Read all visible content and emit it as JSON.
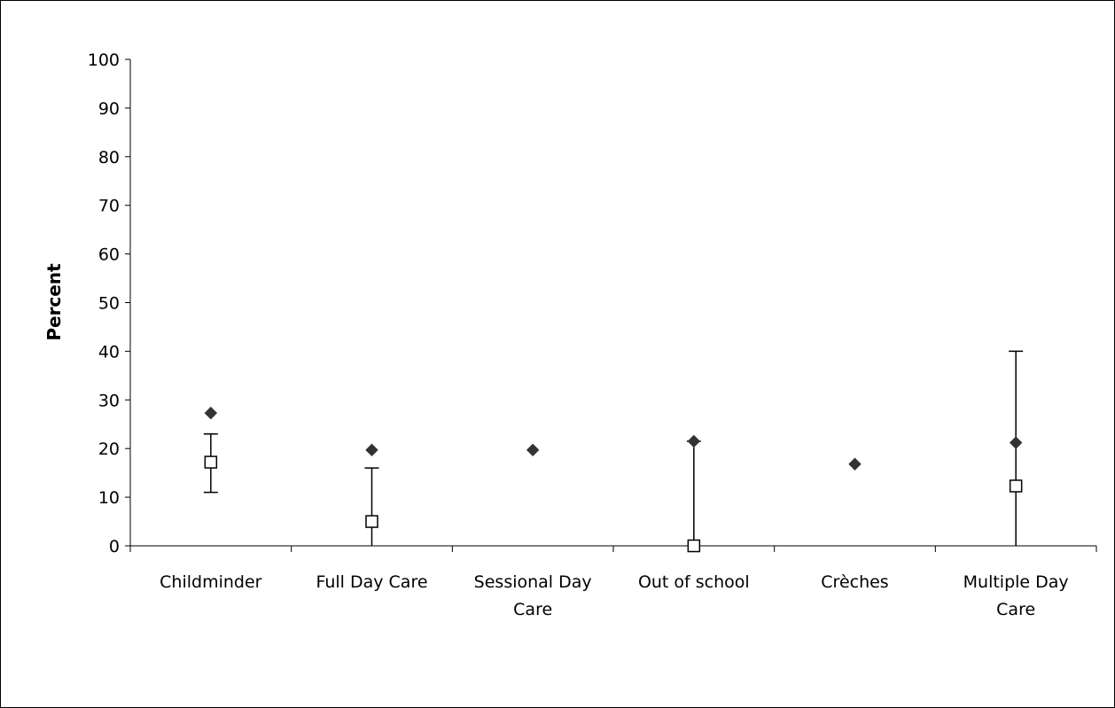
{
  "chart_data": {
    "type": "scatter",
    "title": "",
    "xlabel": "",
    "ylabel": "Percent",
    "ylim": [
      0,
      100
    ],
    "yticks": [
      "0",
      "10",
      "20",
      "30",
      "40",
      "50",
      "60",
      "70",
      "80",
      "90",
      "100"
    ],
    "categories": [
      [
        "Childminder"
      ],
      [
        "Full Day Care"
      ],
      [
        "Sessional Day",
        "Care"
      ],
      [
        "Out of school"
      ],
      [
        "Crèches"
      ],
      [
        "Multiple Day",
        "Care"
      ]
    ],
    "series": [
      {
        "marker": "diamond-filled",
        "color": "#333333",
        "values": [
          27.3,
          19.7,
          19.7,
          21.5,
          16.8,
          21.2
        ]
      },
      {
        "marker": "square-open",
        "color": "#000000",
        "values": [
          17.2,
          5.0,
          null,
          0.0,
          null,
          12.3
        ],
        "error_low": [
          11.0,
          0.0,
          null,
          0.0,
          null,
          0.0
        ],
        "error_high": [
          23.0,
          16.0,
          null,
          21.5,
          null,
          40.0
        ]
      }
    ],
    "grid": false,
    "legend": "none"
  }
}
